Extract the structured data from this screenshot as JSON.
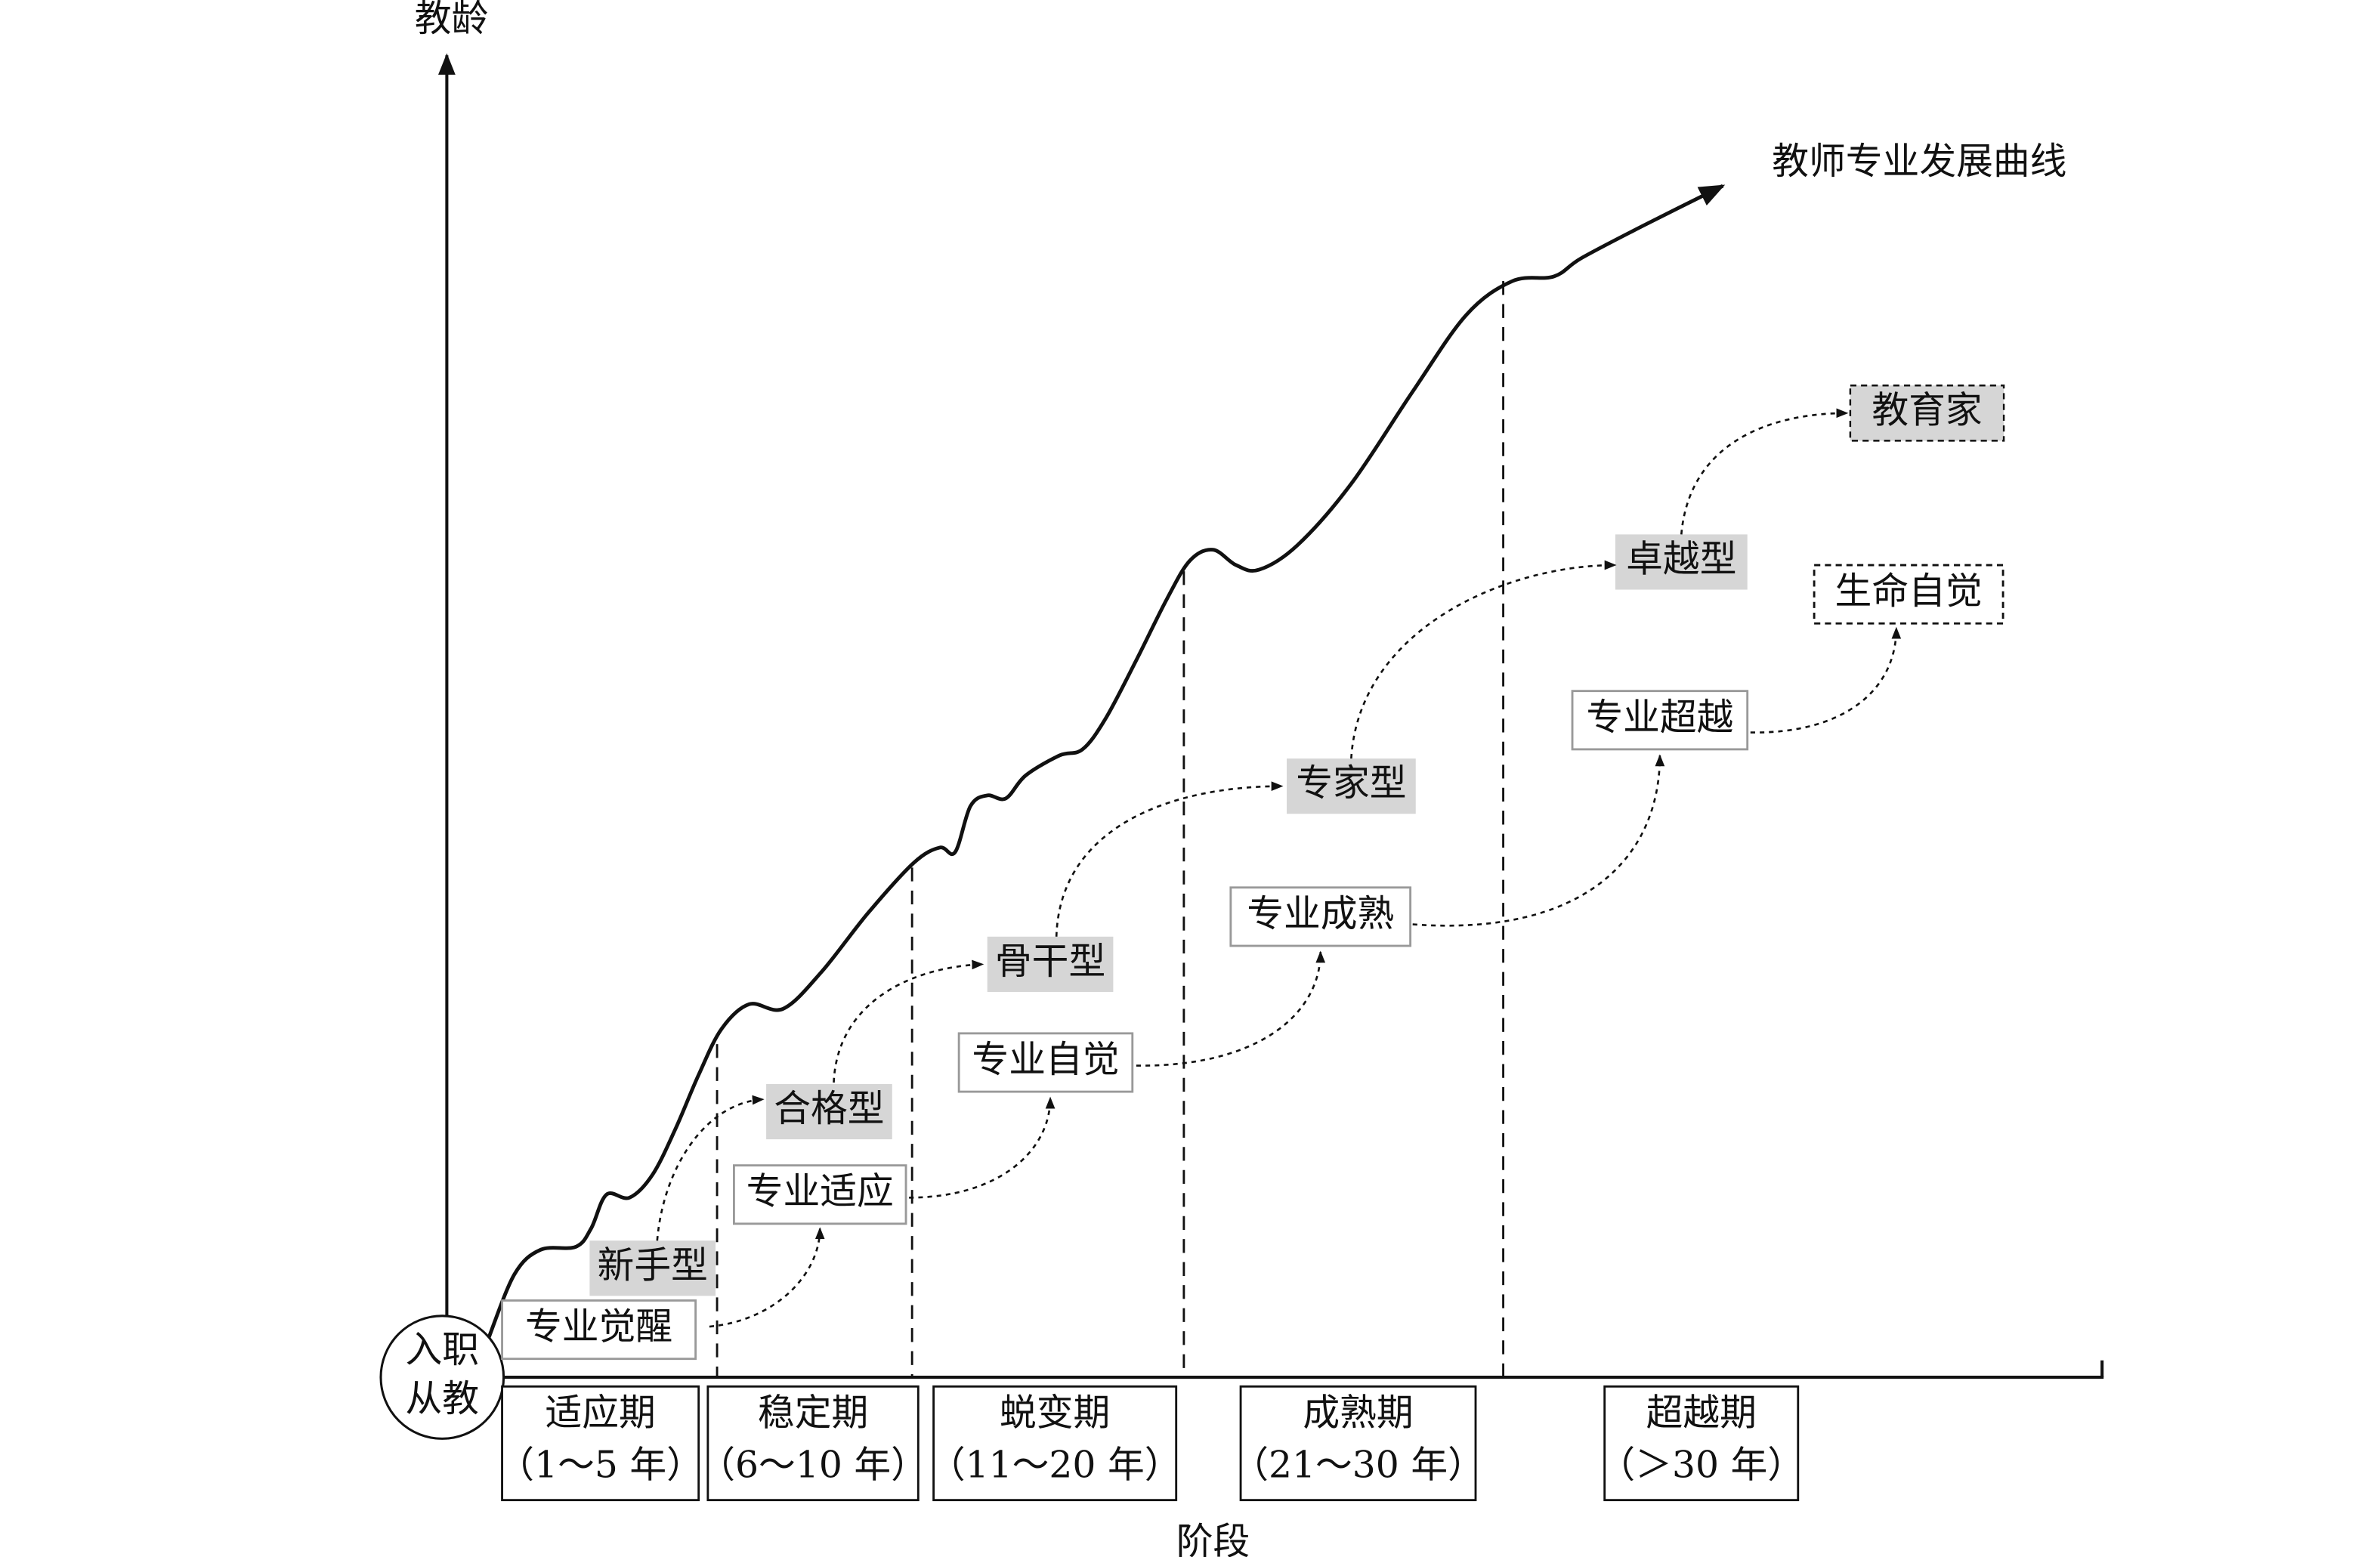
{
  "y_axis_label": "教龄",
  "x_axis_label": "阶段",
  "curve_label": "教师专业发展曲线",
  "origin": {
    "lines": [
      "入职",
      "从教"
    ]
  },
  "stages": [
    {
      "name": "适应期",
      "range": "（1～5 年）"
    },
    {
      "name": "稳定期",
      "range": "（6～10 年）"
    },
    {
      "name": "蜕变期",
      "range": "（11～20 年）"
    },
    {
      "name": "成熟期",
      "range": "（21～30 年）"
    },
    {
      "name": "超越期",
      "range": "（＞30 年）"
    }
  ],
  "teacher_types": [
    "新手型",
    "合格型",
    "骨干型",
    "专家型",
    "卓越型",
    "教育家"
  ],
  "awareness_levels": [
    "专业觉醒",
    "专业适应",
    "专业自觉",
    "专业成熟",
    "专业超越",
    "生命自觉"
  ]
}
